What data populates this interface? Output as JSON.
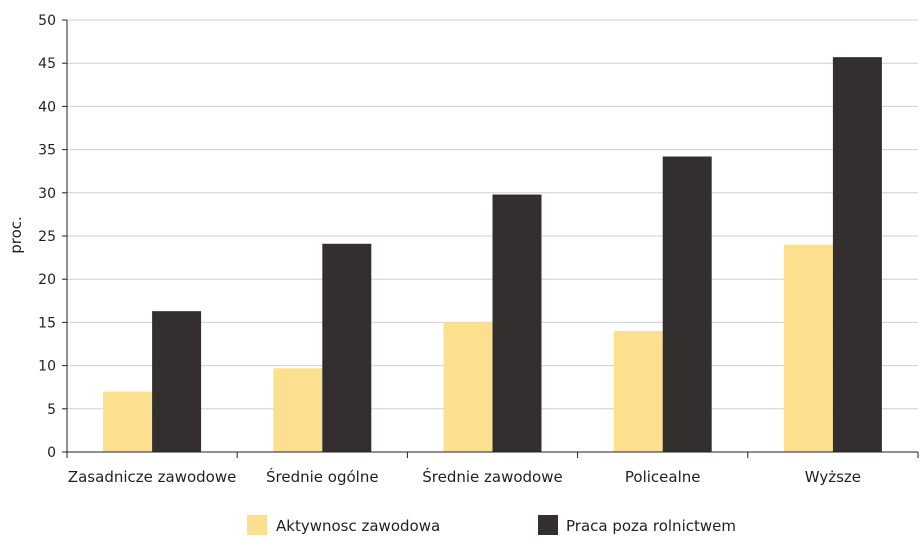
{
  "chart_data": {
    "type": "bar",
    "title": "",
    "xlabel": "",
    "ylabel": "proc.",
    "ylim": [
      0,
      50
    ],
    "yticks": [
      0,
      5,
      10,
      15,
      20,
      25,
      30,
      35,
      40,
      45,
      50
    ],
    "grid": true,
    "legend_position": "bottom",
    "categories": [
      "Zasadnicze zawodowe",
      "Średnie ogólne",
      "Średnie zawodowe",
      "Policealne",
      "Wyższe"
    ],
    "series": [
      {
        "name": "Aktywnosc zawodowa",
        "color": "#fde08f",
        "values": [
          7.0,
          9.7,
          15.0,
          14.0,
          24.0
        ]
      },
      {
        "name": "Praca poza rolnictwem",
        "color": "#332f2e",
        "values": [
          16.3,
          24.1,
          29.8,
          34.2,
          45.7
        ]
      }
    ]
  }
}
